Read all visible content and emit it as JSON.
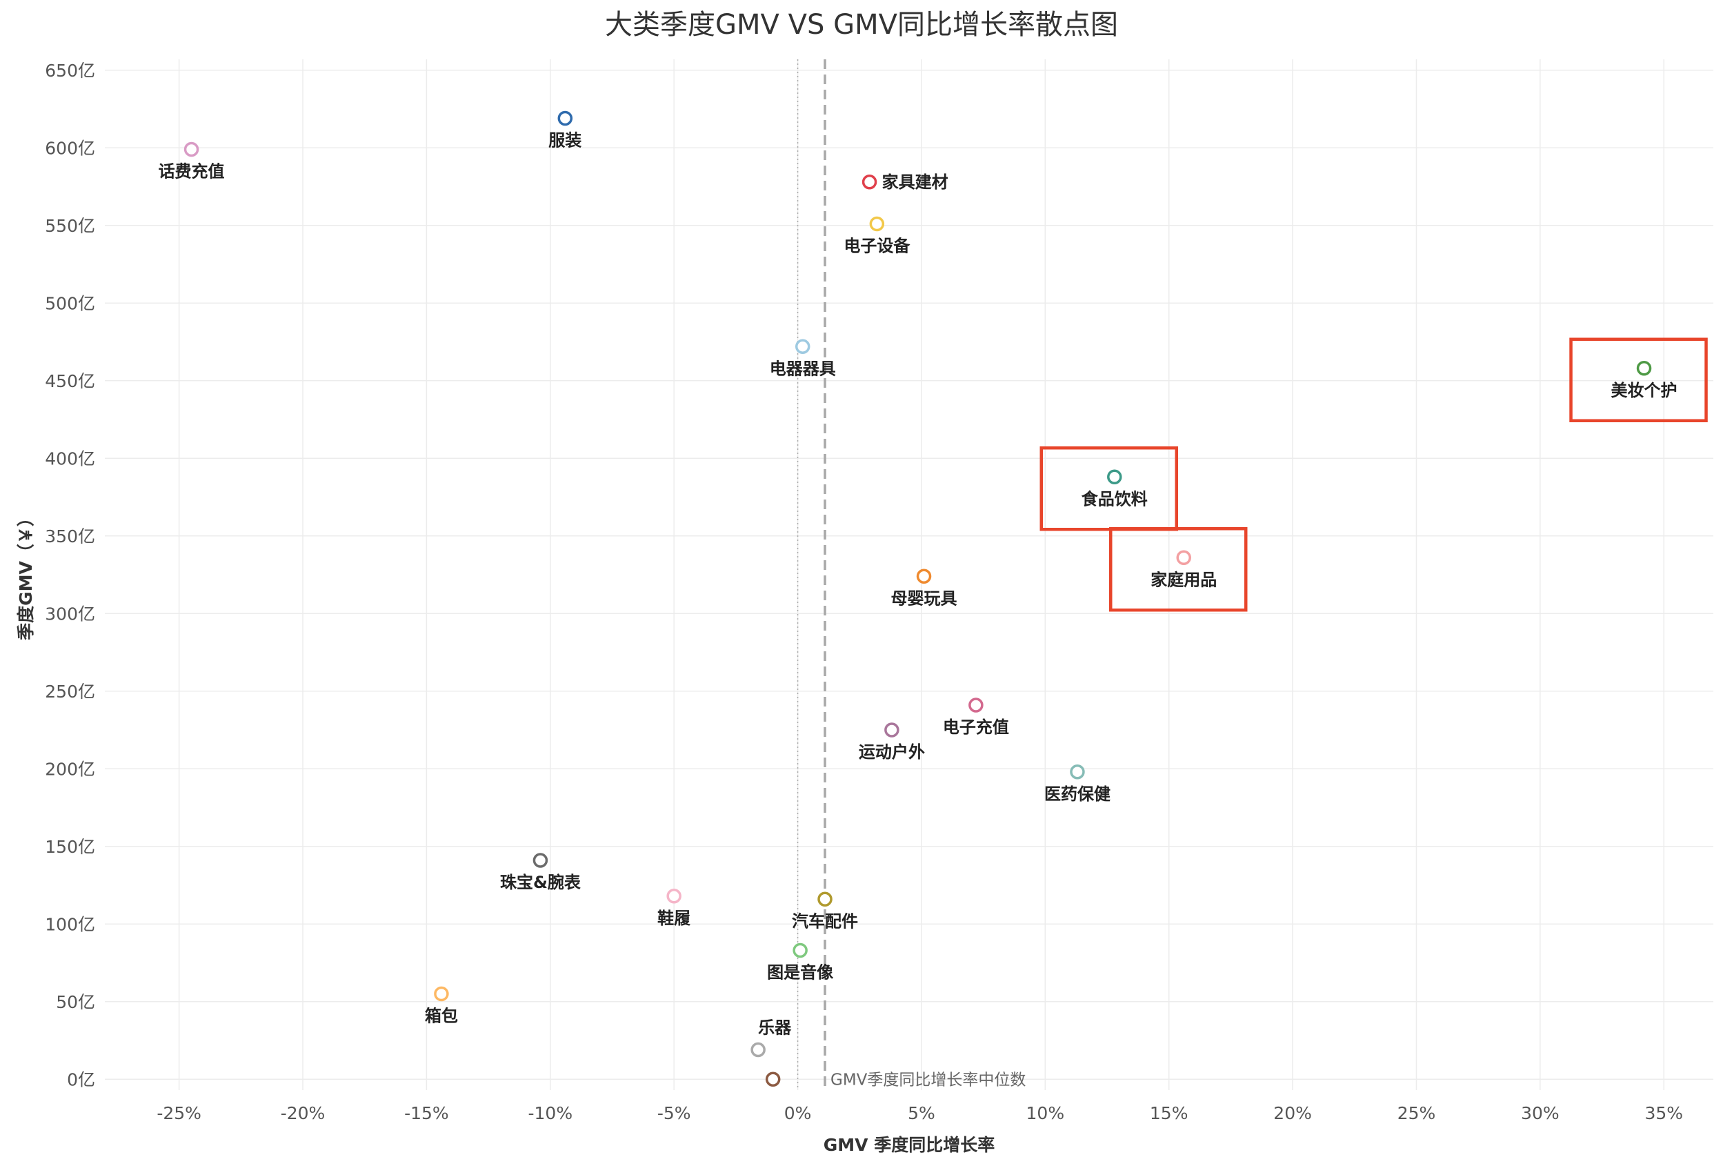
{
  "title": "大类季度GMV VS GMV同比增长率散点图",
  "chart_data": {
    "type": "scatter",
    "title": "大类季度GMV VS GMV同比增长率散点图",
    "xlabel": "GMV 季度同比增长率",
    "ylabel": "季度GMV（￥）",
    "xlim": [
      -0.28,
      0.37
    ],
    "ylim": [
      -7,
      657
    ],
    "x_ticks": [
      -0.25,
      -0.2,
      -0.15,
      -0.1,
      -0.05,
      0.0,
      0.05,
      0.1,
      0.15,
      0.2,
      0.25,
      0.3,
      0.35
    ],
    "x_tick_labels": [
      "-25%",
      "-20%",
      "-15%",
      "-10%",
      "-5%",
      "0%",
      "5%",
      "10%",
      "15%",
      "20%",
      "25%",
      "30%",
      "35%"
    ],
    "y_ticks": [
      0,
      50,
      100,
      150,
      200,
      250,
      300,
      350,
      400,
      450,
      500,
      550,
      600,
      650
    ],
    "y_tick_labels": [
      "0亿",
      "50亿",
      "100亿",
      "150亿",
      "200亿",
      "250亿",
      "300亿",
      "350亿",
      "400亿",
      "450亿",
      "500亿",
      "550亿",
      "600亿",
      "650亿"
    ],
    "grid": true,
    "reference_line": {
      "x": 0.011,
      "label": "GMV季度同比增长率中位数"
    },
    "points": [
      {
        "name": "话费充值",
        "x": -0.245,
        "y": 599,
        "color": "#d99bc5",
        "label_pos": "below"
      },
      {
        "name": "服装",
        "x": -0.094,
        "y": 619,
        "color": "#2f6bad",
        "label_pos": "below"
      },
      {
        "name": "家具建材",
        "x": 0.029,
        "y": 578,
        "color": "#e0404b",
        "label_pos": "right"
      },
      {
        "name": "电子设备",
        "x": 0.032,
        "y": 551,
        "color": "#f2c849",
        "label_pos": "below"
      },
      {
        "name": "电器器具",
        "x": 0.002,
        "y": 472,
        "color": "#9ecae1",
        "label_pos": "below"
      },
      {
        "name": "美妆个护",
        "x": 0.342,
        "y": 458,
        "color": "#4e9a45",
        "label_pos": "below"
      },
      {
        "name": "食品饮料",
        "x": 0.128,
        "y": 388,
        "color": "#3c9a88",
        "label_pos": "below"
      },
      {
        "name": "家庭用品",
        "x": 0.156,
        "y": 336,
        "color": "#f3a0a2",
        "label_pos": "below"
      },
      {
        "name": "母婴玩具",
        "x": 0.051,
        "y": 324,
        "color": "#ef8a2f",
        "label_pos": "below"
      },
      {
        "name": "电子充值",
        "x": 0.072,
        "y": 241,
        "color": "#d3698e",
        "label_pos": "below"
      },
      {
        "name": "运动户外",
        "x": 0.038,
        "y": 225,
        "color": "#a9769b",
        "label_pos": "below"
      },
      {
        "name": "医药保健",
        "x": 0.113,
        "y": 198,
        "color": "#86bcb6",
        "label_pos": "below"
      },
      {
        "name": "珠宝&腕表",
        "x": -0.104,
        "y": 141,
        "color": "#6b6b6b",
        "label_pos": "below"
      },
      {
        "name": "鞋履",
        "x": -0.05,
        "y": 118,
        "color": "#f5b5c8",
        "label_pos": "below"
      },
      {
        "name": "汽车配件",
        "x": 0.011,
        "y": 116,
        "color": "#b09a2e",
        "label_pos": "below"
      },
      {
        "name": "图是音像",
        "x": 0.001,
        "y": 83,
        "color": "#7fc97f",
        "label_pos": "below"
      },
      {
        "name": "箱包",
        "x": -0.144,
        "y": 55,
        "color": "#fdb863",
        "label_pos": "below"
      },
      {
        "name": "乐器",
        "x": -0.016,
        "y": 19,
        "color": "#aaaaaa",
        "label_pos": "above"
      },
      {
        "name": "",
        "x": -0.01,
        "y": 0,
        "color": "#8c5a42",
        "label_pos": "none"
      }
    ],
    "highlighted": [
      "美妆个护",
      "食品饮料",
      "家庭用品"
    ],
    "highlight_color": "#e8452b"
  }
}
